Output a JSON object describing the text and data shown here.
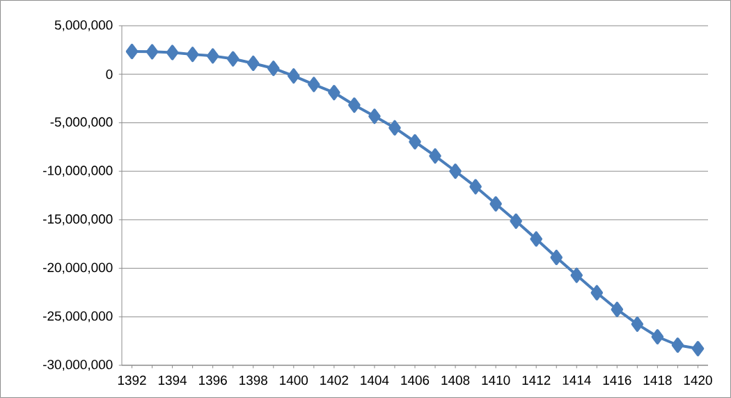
{
  "chart_data": {
    "type": "line",
    "categories": [
      "1392",
      null,
      "1394",
      null,
      "1396",
      null,
      "1398",
      null,
      "1400",
      null,
      "1402",
      null,
      "1404",
      null,
      "1406",
      null,
      "1408",
      null,
      "1410",
      null,
      "1412",
      null,
      "1414",
      null,
      "1416",
      null,
      "1418",
      null,
      "1420"
    ],
    "series": [
      {
        "color": "#4a7ebb",
        "values": [
          2350000,
          2320000,
          2240000,
          2050000,
          1890000,
          1590000,
          1130000,
          610000,
          -170000,
          -1050000,
          -1890000,
          -3180000,
          -4330000,
          -5520000,
          -6960000,
          -8420000,
          -9990000,
          -11590000,
          -13360000,
          -15140000,
          -16980000,
          -18880000,
          -20720000,
          -22520000,
          -24240000,
          -25760000,
          -27060000,
          -27920000,
          -28280000
        ]
      }
    ],
    "ylim": [
      -30000000,
      5000000
    ],
    "yticks": [
      {
        "value": -30000000,
        "label": "-30,000,000"
      },
      {
        "value": -25000000,
        "label": "-25,000,000"
      },
      {
        "value": -20000000,
        "label": "-20,000,000"
      },
      {
        "value": -15000000,
        "label": "-15,000,000"
      },
      {
        "value": -10000000,
        "label": "-10,000,000"
      },
      {
        "value": -5000000,
        "label": "-5,000,000"
      },
      {
        "value": 0,
        "label": "0"
      },
      {
        "value": 5000000,
        "label": "5,000,000"
      }
    ],
    "grid": "y",
    "marker": "diamond",
    "line_style": "solid"
  }
}
